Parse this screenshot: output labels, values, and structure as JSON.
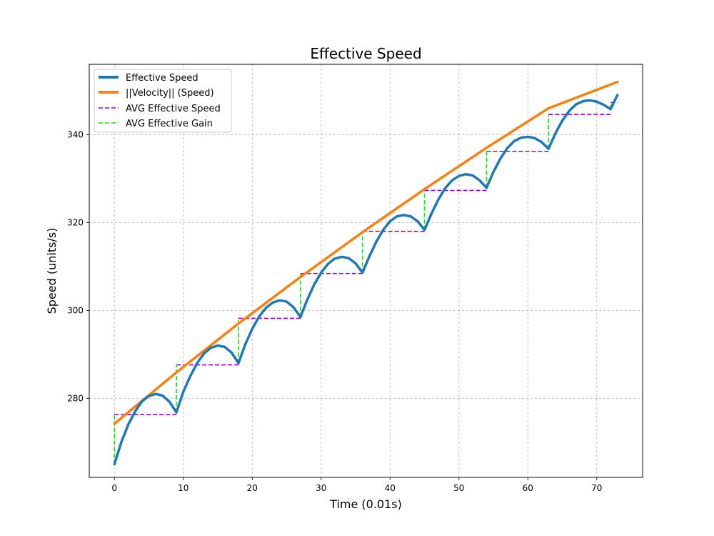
{
  "chart_data": {
    "type": "line",
    "title": "Effective Speed",
    "xlabel": "Time (0.01s)",
    "ylabel": "Speed (units/s)",
    "xlim": [
      -3.65,
      76.65
    ],
    "ylim": [
      262.0,
      356.0
    ],
    "xticks": [
      0,
      10,
      20,
      30,
      40,
      50,
      60,
      70
    ],
    "yticks": [
      280,
      300,
      320,
      340
    ],
    "grid": true,
    "legend_position": "top-left",
    "colors": {
      "effective_speed": "#1f77b4",
      "velocity": "#ff7f0e",
      "avg_speed": "#9400d3",
      "avg_gain": "#32cd32"
    },
    "series": [
      {
        "name": "Effective Speed",
        "style": "solid",
        "segments": [
          [
            [
              0,
              265.0
            ],
            [
              1,
              270.0
            ],
            [
              2,
              274.0
            ],
            [
              3,
              277.0
            ],
            [
              4,
              279.3
            ],
            [
              5,
              280.5
            ],
            [
              6,
              281.0
            ],
            [
              7,
              280.6
            ],
            [
              8,
              279.2
            ],
            [
              9,
              276.8
            ]
          ],
          [
            [
              9,
              276.8
            ],
            [
              10,
              281.5
            ],
            [
              11,
              285.0
            ],
            [
              12,
              288.0
            ],
            [
              13,
              290.2
            ],
            [
              14,
              291.5
            ],
            [
              15,
              292.0
            ],
            [
              16,
              291.7
            ],
            [
              17,
              290.4
            ],
            [
              18,
              288.0
            ]
          ],
          [
            [
              18,
              288.0
            ],
            [
              19,
              292.3
            ],
            [
              20,
              295.8
            ],
            [
              21,
              298.6
            ],
            [
              22,
              300.6
            ],
            [
              23,
              301.8
            ],
            [
              24,
              302.3
            ],
            [
              25,
              302.0
            ],
            [
              26,
              300.7
            ],
            [
              27,
              298.5
            ]
          ],
          [
            [
              27,
              298.5
            ],
            [
              28,
              302.5
            ],
            [
              29,
              305.9
            ],
            [
              30,
              308.6
            ],
            [
              31,
              310.6
            ],
            [
              32,
              311.8
            ],
            [
              33,
              312.2
            ],
            [
              34,
              311.9
            ],
            [
              35,
              310.7
            ],
            [
              36,
              308.6
            ]
          ],
          [
            [
              36,
              308.6
            ],
            [
              37,
              312.3
            ],
            [
              38,
              315.6
            ],
            [
              39,
              318.3
            ],
            [
              40,
              320.3
            ],
            [
              41,
              321.4
            ],
            [
              42,
              321.7
            ],
            [
              43,
              321.4
            ],
            [
              44,
              320.3
            ],
            [
              45,
              318.3
            ]
          ],
          [
            [
              45,
              318.3
            ],
            [
              46,
              322.0
            ],
            [
              47,
              325.2
            ],
            [
              48,
              327.8
            ],
            [
              49,
              329.6
            ],
            [
              50,
              330.6
            ],
            [
              51,
              331.0
            ],
            [
              52,
              330.7
            ],
            [
              53,
              329.6
            ],
            [
              54,
              327.9
            ]
          ],
          [
            [
              54,
              327.9
            ],
            [
              55,
              331.5
            ],
            [
              56,
              334.5
            ],
            [
              57,
              336.9
            ],
            [
              58,
              338.5
            ],
            [
              59,
              339.3
            ],
            [
              60,
              339.5
            ],
            [
              61,
              339.2
            ],
            [
              62,
              338.3
            ],
            [
              63,
              336.8
            ]
          ],
          [
            [
              63,
              336.8
            ],
            [
              64,
              340.3
            ],
            [
              65,
              343.2
            ],
            [
              66,
              345.4
            ],
            [
              67,
              346.9
            ],
            [
              68,
              347.6
            ],
            [
              69,
              347.8
            ],
            [
              70,
              347.5
            ],
            [
              71,
              346.8
            ],
            [
              72,
              345.8
            ]
          ],
          [
            [
              72,
              345.8
            ],
            [
              73,
              349.0
            ]
          ]
        ]
      },
      {
        "name": "||Velocity|| (Speed)",
        "style": "solid",
        "points": [
          [
            0,
            274.2
          ],
          [
            9,
            285.9
          ],
          [
            18,
            297.0
          ],
          [
            27,
            307.6
          ],
          [
            36,
            317.8
          ],
          [
            45,
            327.6
          ],
          [
            54,
            337.0
          ],
          [
            63,
            346.0
          ],
          [
            73,
            352.0
          ]
        ]
      },
      {
        "name": "AVG Effective Speed",
        "style": "dashed",
        "segments": [
          [
            [
              0,
              276.3
            ],
            [
              9,
              276.3
            ]
          ],
          [
            [
              9,
              287.6
            ],
            [
              18,
              287.6
            ]
          ],
          [
            [
              18,
              298.2
            ],
            [
              27,
              298.2
            ]
          ],
          [
            [
              27,
              308.4
            ],
            [
              36,
              308.4
            ]
          ],
          [
            [
              36,
              318.0
            ],
            [
              45,
              318.0
            ]
          ],
          [
            [
              45,
              327.3
            ],
            [
              54,
              327.3
            ]
          ],
          [
            [
              54,
              336.2
            ],
            [
              63,
              336.2
            ]
          ],
          [
            [
              63,
              344.6
            ],
            [
              72,
              344.6
            ]
          ],
          [
            [
              72,
              347.3
            ],
            [
              73,
              347.3
            ]
          ]
        ]
      },
      {
        "name": "AVG Effective Gain",
        "style": "dashed",
        "segments": [
          [
            [
              0,
              265.0
            ],
            [
              0,
              276.3
            ]
          ],
          [
            [
              9,
              276.8
            ],
            [
              9,
              287.6
            ]
          ],
          [
            [
              18,
              288.0
            ],
            [
              18,
              298.2
            ]
          ],
          [
            [
              27,
              298.5
            ],
            [
              27,
              308.4
            ]
          ],
          [
            [
              36,
              308.6
            ],
            [
              36,
              318.0
            ]
          ],
          [
            [
              45,
              318.3
            ],
            [
              45,
              327.3
            ]
          ],
          [
            [
              54,
              327.9
            ],
            [
              54,
              336.2
            ]
          ],
          [
            [
              63,
              336.8
            ],
            [
              63,
              344.6
            ]
          ],
          [
            [
              72,
              345.8
            ],
            [
              72,
              347.3
            ]
          ]
        ]
      }
    ]
  }
}
